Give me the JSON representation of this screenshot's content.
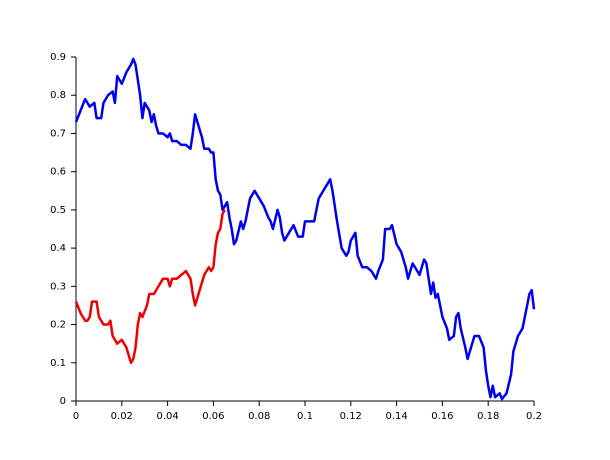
{
  "chart_data": {
    "type": "line",
    "xlim": [
      0,
      0.2
    ],
    "xticks": [
      0,
      0.02,
      0.04,
      0.06,
      0.08,
      0.1,
      0.12,
      0.14,
      0.16,
      0.18,
      0.2
    ],
    "ylim": [
      0,
      0.9
    ],
    "yticks": [
      0,
      0.1,
      0.2,
      0.3,
      0.4,
      0.5,
      0.6,
      0.7,
      0.8,
      0.9
    ],
    "series": [
      {
        "color": "#0000ee",
        "x": [
          0,
          0.002,
          0.004,
          0.006,
          0.008,
          0.009,
          0.011,
          0.012,
          0.014,
          0.016,
          0.017,
          0.018,
          0.02,
          0.022,
          0.024,
          0.025,
          0.026,
          0.028,
          0.029,
          0.03,
          0.032,
          0.033,
          0.034,
          0.035,
          0.036,
          0.038,
          0.04,
          0.041,
          0.042,
          0.044,
          0.046,
          0.048,
          0.05,
          0.051,
          0.052,
          0.053,
          0.055,
          0.056,
          0.058,
          0.059,
          0.06,
          0.061,
          0.062,
          0.063,
          0.064,
          0.066,
          0.067,
          0.068,
          0.069,
          0.07,
          0.072,
          0.073,
          0.074,
          0.076,
          0.078,
          0.08,
          0.082,
          0.084,
          0.085,
          0.086,
          0.088,
          0.089,
          0.09,
          0.091,
          0.093,
          0.095,
          0.097,
          0.099,
          0.1,
          0.102,
          0.104,
          0.106,
          0.108,
          0.11,
          0.111,
          0.112,
          0.114,
          0.116,
          0.118,
          0.119,
          0.12,
          0.122,
          0.123,
          0.125,
          0.127,
          0.129,
          0.131,
          0.132,
          0.134,
          0.135,
          0.137,
          0.138,
          0.14,
          0.142,
          0.144,
          0.145,
          0.147,
          0.149,
          0.15,
          0.152,
          0.153,
          0.155,
          0.156,
          0.157,
          0.158,
          0.16,
          0.162,
          0.163,
          0.165,
          0.166,
          0.167,
          0.168,
          0.17,
          0.171,
          0.172,
          0.174,
          0.176,
          0.178,
          0.179,
          0.18,
          0.181,
          0.182,
          0.183,
          0.185,
          0.186,
          0.188,
          0.19,
          0.191,
          0.193,
          0.195,
          0.196,
          0.198,
          0.199,
          0.2
        ],
        "values": [
          0.73,
          0.76,
          0.79,
          0.77,
          0.78,
          0.74,
          0.74,
          0.78,
          0.8,
          0.81,
          0.78,
          0.85,
          0.83,
          0.86,
          0.88,
          0.895,
          0.88,
          0.8,
          0.74,
          0.78,
          0.76,
          0.73,
          0.75,
          0.72,
          0.7,
          0.7,
          0.69,
          0.7,
          0.68,
          0.68,
          0.67,
          0.67,
          0.66,
          0.7,
          0.75,
          0.73,
          0.69,
          0.66,
          0.66,
          0.65,
          0.65,
          0.58,
          0.55,
          0.54,
          0.5,
          0.52,
          0.48,
          0.45,
          0.41,
          0.42,
          0.47,
          0.45,
          0.47,
          0.53,
          0.55,
          0.53,
          0.51,
          0.48,
          0.47,
          0.45,
          0.5,
          0.48,
          0.44,
          0.42,
          0.44,
          0.46,
          0.43,
          0.43,
          0.47,
          0.47,
          0.47,
          0.53,
          0.55,
          0.57,
          0.58,
          0.55,
          0.47,
          0.4,
          0.38,
          0.39,
          0.42,
          0.44,
          0.38,
          0.35,
          0.35,
          0.34,
          0.32,
          0.34,
          0.37,
          0.45,
          0.45,
          0.46,
          0.41,
          0.39,
          0.35,
          0.32,
          0.36,
          0.34,
          0.33,
          0.37,
          0.36,
          0.28,
          0.31,
          0.27,
          0.28,
          0.22,
          0.19,
          0.16,
          0.17,
          0.22,
          0.23,
          0.19,
          0.14,
          0.11,
          0.13,
          0.17,
          0.17,
          0.14,
          0.08,
          0.04,
          0.01,
          0.04,
          0.01,
          0.02,
          0.005,
          0.02,
          0.07,
          0.13,
          0.17,
          0.19,
          0.22,
          0.28,
          0.29,
          0.24
        ]
      },
      {
        "color": "#ee0000",
        "x": [
          0,
          0.002,
          0.004,
          0.005,
          0.006,
          0.007,
          0.009,
          0.01,
          0.012,
          0.014,
          0.015,
          0.016,
          0.018,
          0.02,
          0.022,
          0.023,
          0.024,
          0.025,
          0.026,
          0.027,
          0.028,
          0.029,
          0.031,
          0.032,
          0.034,
          0.036,
          0.038,
          0.04,
          0.041,
          0.042,
          0.044,
          0.046,
          0.048,
          0.05,
          0.051,
          0.052,
          0.054,
          0.056,
          0.058,
          0.059,
          0.06,
          0.061,
          0.062,
          0.063,
          0.064,
          0.065
        ],
        "values": [
          0.26,
          0.23,
          0.21,
          0.21,
          0.22,
          0.26,
          0.26,
          0.22,
          0.2,
          0.2,
          0.21,
          0.17,
          0.15,
          0.16,
          0.14,
          0.12,
          0.1,
          0.11,
          0.14,
          0.2,
          0.23,
          0.22,
          0.25,
          0.28,
          0.28,
          0.3,
          0.32,
          0.32,
          0.3,
          0.32,
          0.32,
          0.33,
          0.34,
          0.32,
          0.28,
          0.25,
          0.29,
          0.33,
          0.35,
          0.34,
          0.35,
          0.41,
          0.44,
          0.45,
          0.49,
          0.5
        ]
      }
    ]
  }
}
